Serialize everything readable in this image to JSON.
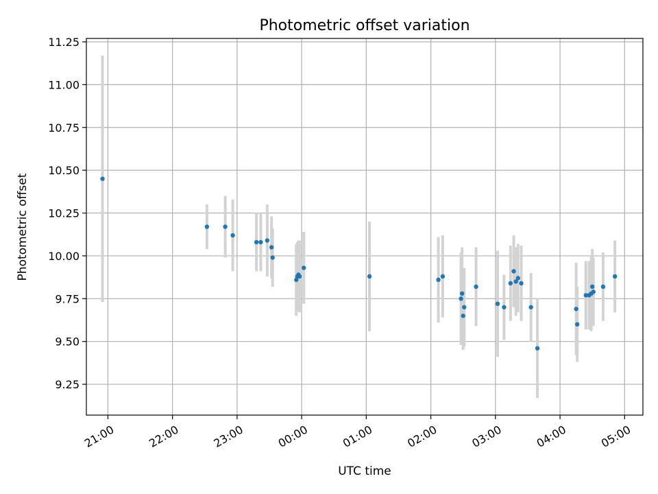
{
  "chart_data": {
    "type": "scatter",
    "title": "Photometric offset variation",
    "xlabel": "UTC time",
    "ylabel": "Photometric offset",
    "grid": true,
    "x_axis": {
      "type": "time",
      "unit": "UTC",
      "range": [
        "20:40",
        "05:17"
      ]
    },
    "y_axis": {
      "range": [
        9.07,
        11.27
      ]
    },
    "x_ticks": [
      "21:00",
      "22:00",
      "23:00",
      "00:00",
      "01:00",
      "02:00",
      "03:00",
      "04:00",
      "05:00"
    ],
    "y_ticks": [
      "9.25",
      "9.50",
      "9.75",
      "10.00",
      "10.25",
      "10.50",
      "10.75",
      "11.00",
      "11.25"
    ],
    "colors": {
      "marker": "#1f77b4",
      "errorbar": "#d3d3d3"
    },
    "series": [
      {
        "points": [
          {
            "x": "20:55",
            "y": 10.45,
            "yerr": 0.72
          },
          {
            "x": "22:32",
            "y": 10.17,
            "yerr": 0.13
          },
          {
            "x": "22:49",
            "y": 10.17,
            "yerr": 0.18
          },
          {
            "x": "22:56",
            "y": 10.12,
            "yerr": 0.21
          },
          {
            "x": "23:18",
            "y": 10.08,
            "yerr": 0.17
          },
          {
            "x": "23:22",
            "y": 10.08,
            "yerr": 0.17
          },
          {
            "x": "23:28",
            "y": 10.09,
            "yerr": 0.21
          },
          {
            "x": "23:32",
            "y": 10.05,
            "yerr": 0.18
          },
          {
            "x": "23:33",
            "y": 9.99,
            "yerr": 0.17
          },
          {
            "x": "23:55",
            "y": 9.86,
            "yerr": 0.21
          },
          {
            "x": "23:56",
            "y": 9.88,
            "yerr": 0.2
          },
          {
            "x": "23:57",
            "y": 9.89,
            "yerr": 0.2
          },
          {
            "x": "23:58",
            "y": 9.88,
            "yerr": 0.21
          },
          {
            "x": "00:02",
            "y": 9.93,
            "yerr": 0.21
          },
          {
            "x": "01:03",
            "y": 9.88,
            "yerr": 0.32
          },
          {
            "x": "02:07",
            "y": 9.86,
            "yerr": 0.25
          },
          {
            "x": "02:11",
            "y": 9.88,
            "yerr": 0.24
          },
          {
            "x": "02:28",
            "y": 9.75,
            "yerr": 0.27
          },
          {
            "x": "02:29",
            "y": 9.78,
            "yerr": 0.27
          },
          {
            "x": "02:30",
            "y": 9.65,
            "yerr": 0.2
          },
          {
            "x": "02:31",
            "y": 9.7,
            "yerr": 0.23
          },
          {
            "x": "02:42",
            "y": 9.82,
            "yerr": 0.23
          },
          {
            "x": "03:02",
            "y": 9.72,
            "yerr": 0.31
          },
          {
            "x": "03:08",
            "y": 9.7,
            "yerr": 0.19
          },
          {
            "x": "03:14",
            "y": 9.84,
            "yerr": 0.22
          },
          {
            "x": "03:17",
            "y": 9.91,
            "yerr": 0.21
          },
          {
            "x": "03:19",
            "y": 9.85,
            "yerr": 0.2
          },
          {
            "x": "03:21",
            "y": 9.87,
            "yerr": 0.2
          },
          {
            "x": "03:24",
            "y": 9.84,
            "yerr": 0.22
          },
          {
            "x": "03:33",
            "y": 9.7,
            "yerr": 0.2
          },
          {
            "x": "03:39",
            "y": 9.46,
            "yerr": 0.29
          },
          {
            "x": "04:15",
            "y": 9.69,
            "yerr": 0.27
          },
          {
            "x": "04:16",
            "y": 9.6,
            "yerr": 0.22
          },
          {
            "x": "04:24",
            "y": 9.77,
            "yerr": 0.2
          },
          {
            "x": "04:27",
            "y": 9.77,
            "yerr": 0.2
          },
          {
            "x": "04:29",
            "y": 9.78,
            "yerr": 0.22
          },
          {
            "x": "04:30",
            "y": 9.82,
            "yerr": 0.22
          },
          {
            "x": "04:31",
            "y": 9.79,
            "yerr": 0.2
          },
          {
            "x": "04:40",
            "y": 9.82,
            "yerr": 0.2
          },
          {
            "x": "04:51",
            "y": 9.88,
            "yerr": 0.21
          }
        ]
      }
    ]
  }
}
